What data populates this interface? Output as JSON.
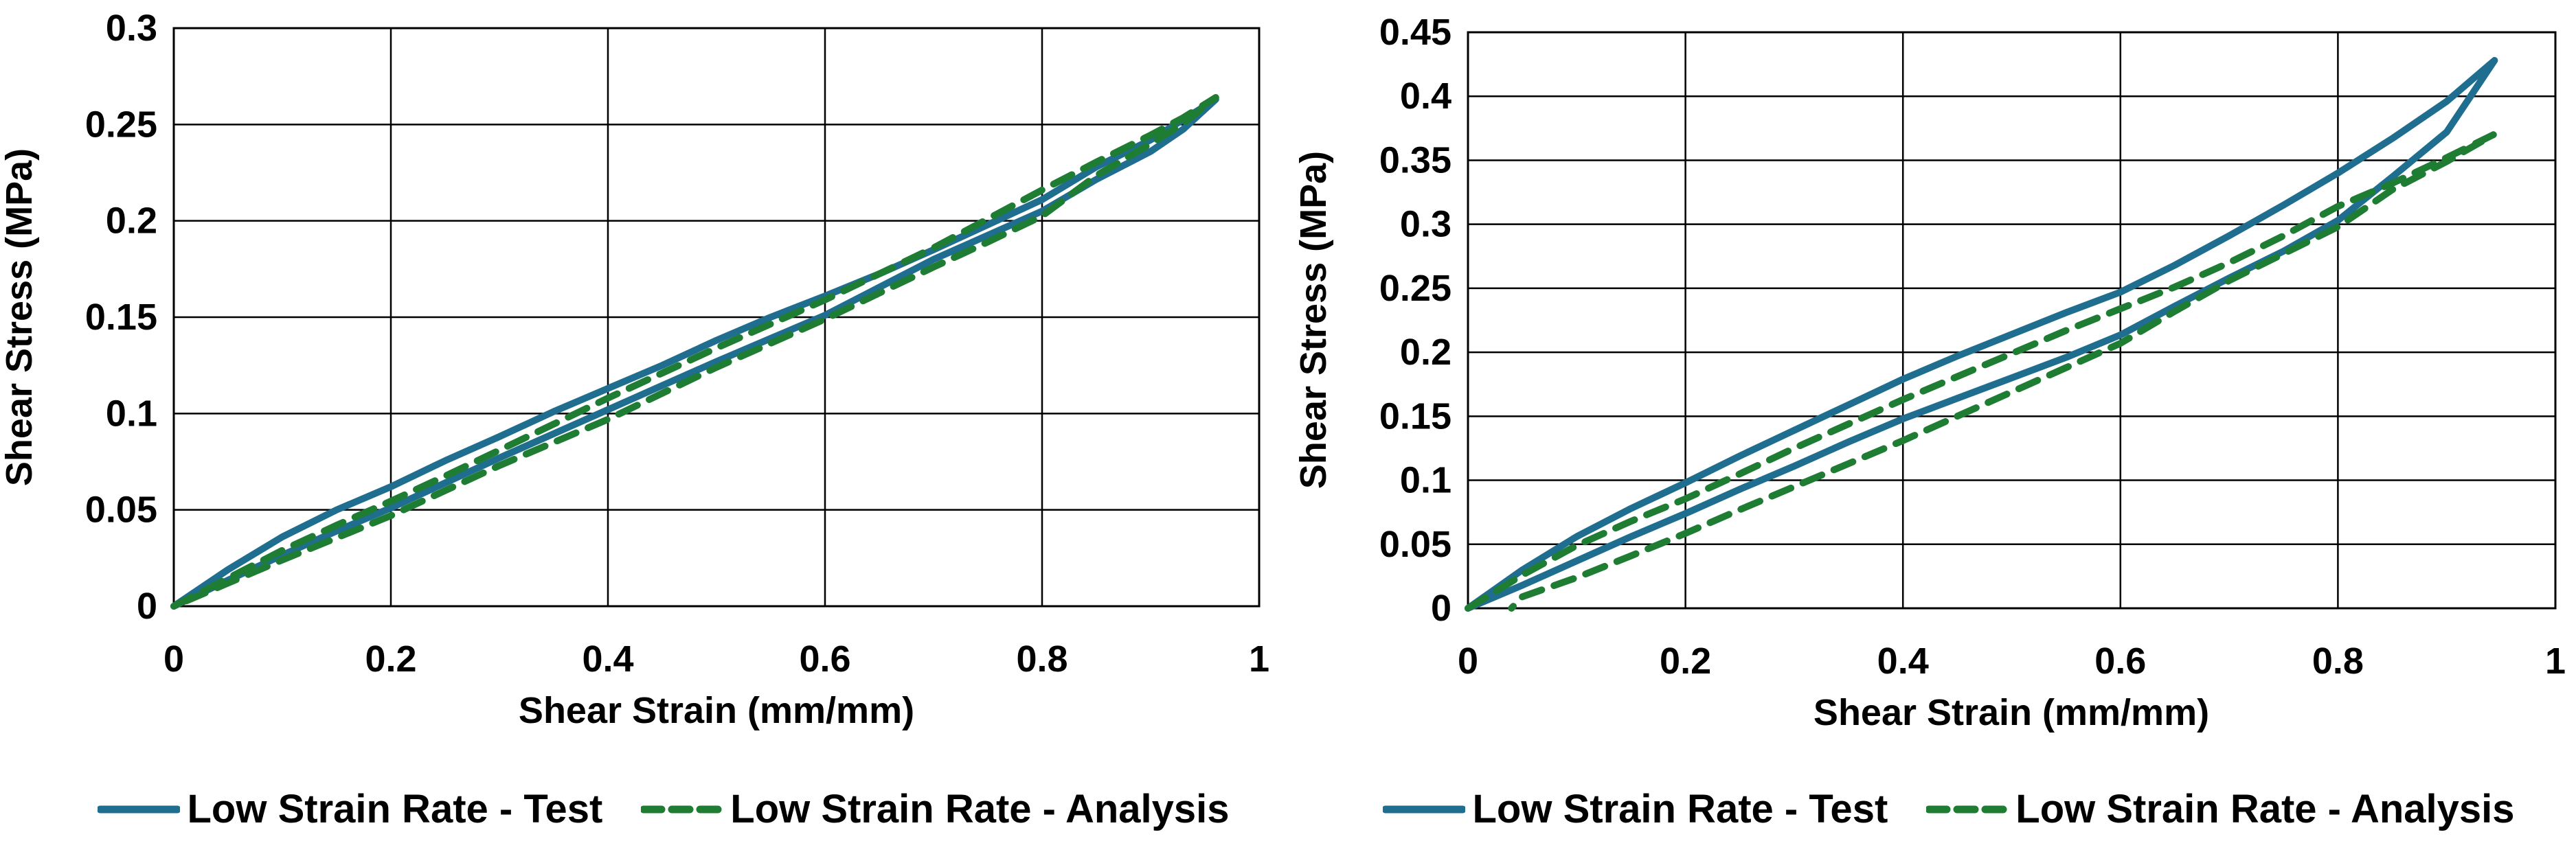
{
  "page": {
    "background": "#ffffff"
  },
  "colors": {
    "test_line": "#1F6E8F",
    "analysis_line": "#1E7C33",
    "grid": "#000000",
    "text": "#000000"
  },
  "chart_data": [
    {
      "type": "line",
      "title": "",
      "xlabel": "Shear Strain (mm/mm)",
      "ylabel": "Shear Stress (MPa)",
      "xlim": [
        0,
        1
      ],
      "ylim": [
        0,
        0.3
      ],
      "grid": true,
      "legend_position": "bottom",
      "xticks": [
        [
          0,
          "0"
        ],
        [
          0.2,
          "0.2"
        ],
        [
          0.4,
          "0.4"
        ],
        [
          0.6,
          "0.6"
        ],
        [
          0.8,
          "0.8"
        ],
        [
          1,
          "1"
        ]
      ],
      "yticks": [
        [
          0,
          "0"
        ],
        [
          0.05,
          "0.05"
        ],
        [
          0.1,
          "0.1"
        ],
        [
          0.15,
          "0.15"
        ],
        [
          0.2,
          "0.2"
        ],
        [
          0.25,
          "0.25"
        ],
        [
          0.3,
          "0.3"
        ]
      ],
      "series": [
        {
          "name": "Low Strain Rate - Test",
          "color": "#1F6E8F",
          "style": "solid",
          "points": [
            [
              0,
              0
            ],
            [
              0.05,
              0.019
            ],
            [
              0.1,
              0.036
            ],
            [
              0.15,
              0.05
            ],
            [
              0.2,
              0.062
            ],
            [
              0.25,
              0.0755
            ],
            [
              0.3,
              0.088
            ],
            [
              0.35,
              0.101
            ],
            [
              0.4,
              0.113
            ],
            [
              0.45,
              0.125
            ],
            [
              0.5,
              0.138
            ],
            [
              0.55,
              0.15
            ],
            [
              0.6,
              0.161
            ],
            [
              0.65,
              0.1725
            ],
            [
              0.7,
              0.185
            ],
            [
              0.75,
              0.198
            ],
            [
              0.8,
              0.211
            ],
            [
              0.85,
              0.228
            ],
            [
              0.9,
              0.242
            ],
            [
              0.93,
              0.2525
            ],
            [
              0.96,
              0.263
            ],
            [
              0.93,
              0.2475
            ],
            [
              0.9,
              0.236
            ],
            [
              0.85,
              0.2215
            ],
            [
              0.8,
              0.205
            ],
            [
              0.75,
              0.1925
            ],
            [
              0.7,
              0.18
            ],
            [
              0.65,
              0.1655
            ],
            [
              0.6,
              0.151
            ],
            [
              0.55,
              0.139
            ],
            [
              0.5,
              0.127
            ],
            [
              0.45,
              0.1145
            ],
            [
              0.4,
              0.102
            ],
            [
              0.35,
              0.0895
            ],
            [
              0.3,
              0.077
            ],
            [
              0.25,
              0.064
            ],
            [
              0.2,
              0.051
            ],
            [
              0.15,
              0.039
            ],
            [
              0.1,
              0.0265
            ],
            [
              0.05,
              0.0135
            ],
            [
              0,
              0
            ]
          ]
        },
        {
          "name": "Low Strain Rate - Analysis",
          "color": "#1E7C33",
          "style": "dashed",
          "points": [
            [
              0,
              0
            ],
            [
              0.05,
              0.0145
            ],
            [
              0.1,
              0.029
            ],
            [
              0.15,
              0.042
            ],
            [
              0.2,
              0.0545
            ],
            [
              0.25,
              0.0675
            ],
            [
              0.3,
              0.081
            ],
            [
              0.35,
              0.0945
            ],
            [
              0.4,
              0.108
            ],
            [
              0.45,
              0.121
            ],
            [
              0.5,
              0.134
            ],
            [
              0.55,
              0.1465
            ],
            [
              0.6,
              0.159
            ],
            [
              0.65,
              0.1725
            ],
            [
              0.7,
              0.186
            ],
            [
              0.75,
              0.201
            ],
            [
              0.8,
              0.216
            ],
            [
              0.85,
              0.2305
            ],
            [
              0.9,
              0.2445
            ],
            [
              0.93,
              0.2535
            ],
            [
              0.96,
              0.264
            ],
            [
              0.93,
              0.2505
            ],
            [
              0.9,
              0.24
            ],
            [
              0.85,
              0.2235
            ],
            [
              0.8,
              0.2025
            ],
            [
              0.75,
              0.189
            ],
            [
              0.7,
              0.176
            ],
            [
              0.65,
              0.1625
            ],
            [
              0.6,
              0.149
            ],
            [
              0.55,
              0.1365
            ],
            [
              0.5,
              0.124
            ],
            [
              0.45,
              0.1105
            ],
            [
              0.4,
              0.097
            ],
            [
              0.35,
              0.085
            ],
            [
              0.3,
              0.073
            ],
            [
              0.25,
              0.06
            ],
            [
              0.2,
              0.047
            ],
            [
              0.15,
              0.0355
            ],
            [
              0.1,
              0.024
            ],
            [
              0.05,
              0.012
            ],
            [
              0,
              0
            ]
          ]
        }
      ]
    },
    {
      "type": "line",
      "title": "",
      "xlabel": "Shear Strain (mm/mm)",
      "ylabel": "Shear Stress (MPa)",
      "xlim": [
        0,
        1
      ],
      "ylim": [
        0,
        0.45
      ],
      "grid": true,
      "legend_position": "bottom",
      "xticks": [
        [
          0,
          "0"
        ],
        [
          0.2,
          "0.2"
        ],
        [
          0.4,
          "0.4"
        ],
        [
          0.6,
          "0.6"
        ],
        [
          0.8,
          "0.8"
        ],
        [
          1,
          "1"
        ]
      ],
      "yticks": [
        [
          0,
          "0"
        ],
        [
          0.05,
          "0.05"
        ],
        [
          0.1,
          "0.1"
        ],
        [
          0.15,
          "0.15"
        ],
        [
          0.2,
          "0.2"
        ],
        [
          0.25,
          "0.25"
        ],
        [
          0.3,
          "0.3"
        ],
        [
          0.35,
          "0.35"
        ],
        [
          0.4,
          "0.4"
        ],
        [
          0.45,
          "0.45"
        ]
      ],
      "series": [
        {
          "name": "Low Strain Rate - Test",
          "color": "#1F6E8F",
          "style": "solid",
          "points": [
            [
              0,
              0
            ],
            [
              0.05,
              0.03
            ],
            [
              0.1,
              0.056
            ],
            [
              0.15,
              0.078
            ],
            [
              0.2,
              0.098
            ],
            [
              0.25,
              0.119
            ],
            [
              0.3,
              0.139
            ],
            [
              0.35,
              0.159
            ],
            [
              0.4,
              0.179
            ],
            [
              0.45,
              0.197
            ],
            [
              0.5,
              0.214
            ],
            [
              0.55,
              0.231
            ],
            [
              0.6,
              0.247
            ],
            [
              0.65,
              0.268
            ],
            [
              0.7,
              0.291
            ],
            [
              0.75,
              0.315
            ],
            [
              0.8,
              0.34
            ],
            [
              0.85,
              0.367
            ],
            [
              0.9,
              0.396
            ],
            [
              0.944,
              0.428
            ],
            [
              0.9,
              0.372
            ],
            [
              0.85,
              0.337
            ],
            [
              0.8,
              0.303
            ],
            [
              0.75,
              0.279
            ],
            [
              0.7,
              0.258
            ],
            [
              0.65,
              0.236
            ],
            [
              0.6,
              0.2135
            ],
            [
              0.55,
              0.196
            ],
            [
              0.5,
              0.18
            ],
            [
              0.45,
              0.164
            ],
            [
              0.4,
              0.148
            ],
            [
              0.35,
              0.13
            ],
            [
              0.3,
              0.111
            ],
            [
              0.25,
              0.093
            ],
            [
              0.2,
              0.074
            ],
            [
              0.15,
              0.056
            ],
            [
              0.1,
              0.037
            ],
            [
              0.05,
              0.018
            ],
            [
              0,
              0
            ]
          ]
        },
        {
          "name": "Low Strain Rate - Analysis",
          "color": "#1E7C33",
          "style": "dashed",
          "points": [
            [
              0,
              0
            ],
            [
              0.05,
              0.026
            ],
            [
              0.1,
              0.049
            ],
            [
              0.15,
              0.068
            ],
            [
              0.2,
              0.0855
            ],
            [
              0.25,
              0.105
            ],
            [
              0.3,
              0.125
            ],
            [
              0.35,
              0.144
            ],
            [
              0.4,
              0.163
            ],
            [
              0.45,
              0.181
            ],
            [
              0.5,
              0.199
            ],
            [
              0.55,
              0.217
            ],
            [
              0.6,
              0.234
            ],
            [
              0.65,
              0.251
            ],
            [
              0.7,
              0.27
            ],
            [
              0.75,
              0.291
            ],
            [
              0.8,
              0.314
            ],
            [
              0.85,
              0.332
            ],
            [
              0.9,
              0.352
            ],
            [
              0.943,
              0.37
            ],
            [
              0.9,
              0.349
            ],
            [
              0.85,
              0.327
            ],
            [
              0.8,
              0.298
            ],
            [
              0.75,
              0.277
            ],
            [
              0.7,
              0.256
            ],
            [
              0.65,
              0.232
            ],
            [
              0.6,
              0.207
            ],
            [
              0.55,
              0.188
            ],
            [
              0.5,
              0.169
            ],
            [
              0.45,
              0.15
            ],
            [
              0.4,
              0.131
            ],
            [
              0.35,
              0.113
            ],
            [
              0.3,
              0.095
            ],
            [
              0.25,
              0.077
            ],
            [
              0.2,
              0.0585
            ],
            [
              0.15,
              0.041
            ],
            [
              0.1,
              0.024
            ],
            [
              0.05,
              0.009
            ],
            [
              0.04,
              0
            ]
          ]
        }
      ]
    }
  ]
}
